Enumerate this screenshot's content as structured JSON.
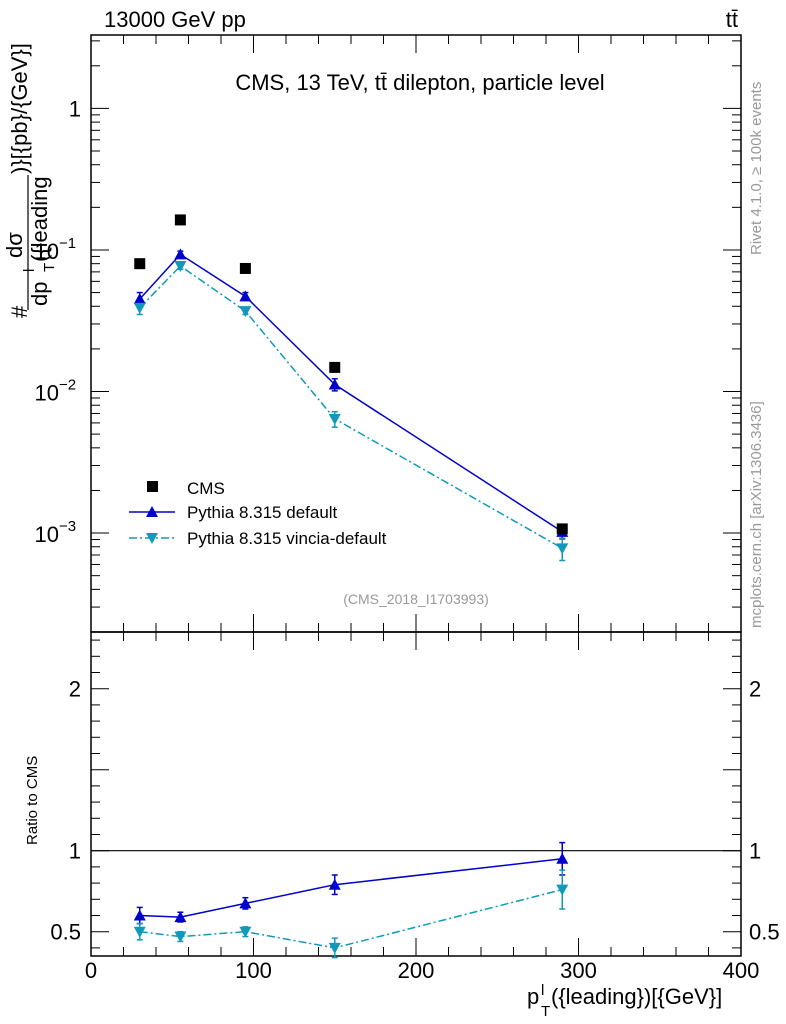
{
  "header": {
    "left": "13000 GeV pp",
    "right": "tt̄"
  },
  "side_labels": {
    "rivet": "Rivet 4.1.0, ≥ 100k events",
    "mcplots": "mcplots.cern.ch [arXiv:1306.3436]"
  },
  "colors": {
    "cms": "#000000",
    "default": "#0000cc",
    "vincia": "#1199bb",
    "gray_text": "#999999"
  },
  "chart_data": [
    {
      "type": "scatter",
      "panel": "main",
      "title": "CMS, 13 TeV, tt̄ dilepton, particle level",
      "watermark": "(CMS_2018_I1703993)",
      "ylabel": "#dσ/dp_T^l({leading})[{pb}/{GeV}]",
      "ylabel_parts": {
        "hash": "#",
        "num": "dσ",
        "den_dp": "dp",
        "den_sup": "l",
        "den_sub": "T",
        "den_rest": "({leading",
        "rest": ")}[{pb}/{GeV}]"
      },
      "yscale": "log",
      "ylim": [
        0.0002,
        3.3
      ],
      "xlim": [
        0,
        400
      ],
      "y_ticks": [
        {
          "value": 1,
          "label": "1"
        },
        {
          "value": 0.1,
          "base": "10",
          "exp": "−1"
        },
        {
          "value": 0.01,
          "base": "10",
          "exp": "−2"
        },
        {
          "value": 0.001,
          "base": "10",
          "exp": "−3"
        }
      ],
      "legend": {
        "position": "bottom-left",
        "entries": [
          {
            "key": "cms",
            "label": "CMS"
          },
          {
            "key": "default",
            "label": "Pythia 8.315 default"
          },
          {
            "key": "vincia",
            "label": "Pythia 8.315 vincia-default"
          }
        ]
      },
      "x": [
        30,
        55,
        95,
        150,
        290
      ],
      "series": [
        {
          "key": "cms",
          "name": "CMS",
          "marker": "square",
          "line": "none",
          "values": [
            0.08,
            0.163,
            0.074,
            0.0148,
            0.00107
          ]
        },
        {
          "key": "default",
          "name": "Pythia 8.315 default",
          "marker": "triangle-up",
          "line": "solid",
          "values": [
            0.045,
            0.093,
            0.047,
            0.0112,
            0.00102
          ],
          "err": [
            0.005,
            0.005,
            0.003,
            0.0011,
            0.00011
          ]
        },
        {
          "key": "vincia",
          "name": "Pythia 8.315 vincia-default",
          "marker": "triangle-down",
          "line": "dashdot",
          "values": [
            0.039,
            0.077,
            0.037,
            0.0064,
            0.00078
          ],
          "err": [
            0.004,
            0.004,
            0.002,
            0.0008,
            0.00014
          ]
        }
      ]
    },
    {
      "type": "line",
      "panel": "ratio",
      "ylabel": "Ratio to CMS",
      "xlabel": "p_T^l({leading})[{GeV}]",
      "xlabel_parts": {
        "p": "p",
        "sup": "l",
        "sub": "T",
        "rest": "({leading})[{GeV}]"
      },
      "ylim": [
        0.35,
        2.35
      ],
      "xlim": [
        0,
        400
      ],
      "y_ticks": [
        {
          "value": 0.5,
          "label": "0.5"
        },
        {
          "value": 1,
          "label": "1"
        },
        {
          "value": 2,
          "label": "2"
        }
      ],
      "x_ticks": [
        {
          "value": 0,
          "label": "0"
        },
        {
          "value": 100,
          "label": "100"
        },
        {
          "value": 200,
          "label": "200"
        },
        {
          "value": 300,
          "label": "300"
        },
        {
          "value": 400,
          "label": "400"
        }
      ],
      "reference_line": 1,
      "x": [
        30,
        55,
        95,
        150,
        290
      ],
      "series": [
        {
          "key": "default",
          "name": "Pythia 8.315 default",
          "marker": "triangle-up",
          "line": "solid",
          "values": [
            0.6,
            0.59,
            0.675,
            0.79,
            0.95
          ],
          "err": [
            0.05,
            0.03,
            0.035,
            0.06,
            0.1
          ]
        },
        {
          "key": "vincia",
          "name": "Pythia 8.315 vincia-default",
          "marker": "triangle-down",
          "line": "dashdot",
          "values": [
            0.5,
            0.47,
            0.5,
            0.4,
            0.76
          ],
          "err": [
            0.05,
            0.03,
            0.03,
            0.06,
            0.12
          ]
        }
      ]
    }
  ]
}
